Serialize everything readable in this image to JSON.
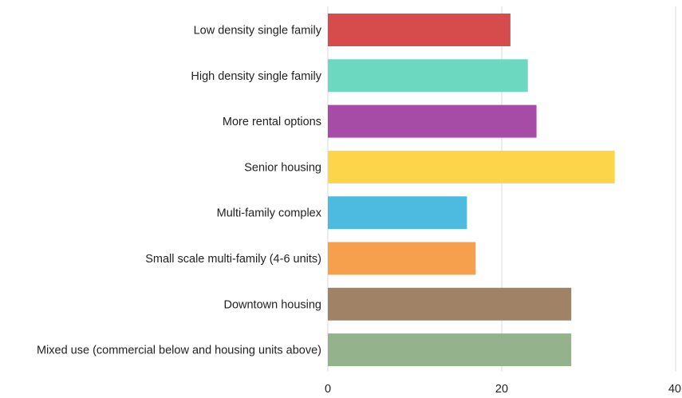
{
  "chart_data": {
    "type": "bar",
    "orientation": "horizontal",
    "categories": [
      "Low density single family",
      "High density single family",
      "More rental options",
      "Senior housing",
      "Multi-family complex",
      "Small scale multi-family (4-6 units)",
      "Downtown housing",
      "Mixed use (commercial below and housing units above)"
    ],
    "values": [
      21,
      23,
      24,
      33,
      16,
      17,
      28,
      28
    ],
    "colors": [
      "#d64b4b",
      "#6dd8c0",
      "#a64ca6",
      "#fdd54a",
      "#4dbbe0",
      "#f6a04d",
      "#a08366",
      "#94b38c"
    ],
    "title": "",
    "xlabel": "",
    "ylabel": "",
    "xlim": [
      0,
      40
    ],
    "xticks": [
      "0",
      "20",
      "40"
    ],
    "grid": true
  }
}
